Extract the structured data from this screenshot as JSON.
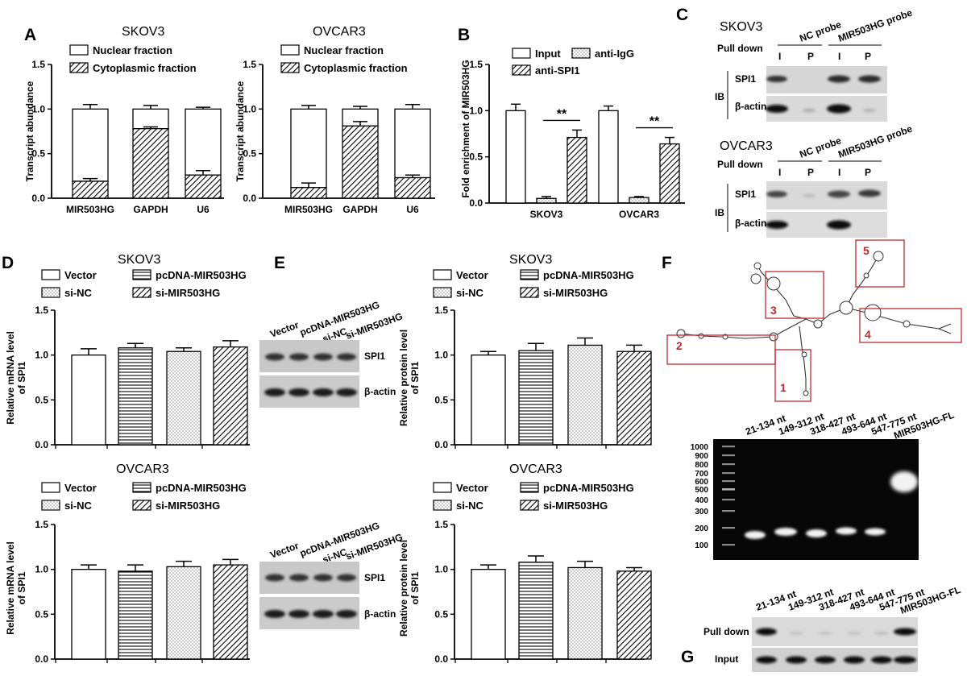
{
  "panels": {
    "A": {
      "letter": "A",
      "legend": [
        "Nuclear fraction",
        "Cytoplasmic fraction"
      ],
      "ylabel": "Transcript abundance",
      "yticks": [
        "0.0",
        "0.5",
        "1.0",
        "1.5"
      ],
      "charts": [
        {
          "title": "SKOV3"
        },
        {
          "title": "OVCAR3"
        }
      ]
    },
    "B": {
      "letter": "B",
      "legend": [
        "Input",
        "anti-IgG",
        "anti-SPI1"
      ],
      "ylabel": "Fold enrichment of MIR503HG",
      "yticks": [
        "0.0",
        "0.5",
        "1.0",
        "1.5"
      ],
      "sig": "**"
    },
    "C": {
      "letter": "C",
      "blots": [
        {
          "title": "SKOV3",
          "pull_down": "Pull down",
          "nc_probe": "NC probe",
          "mir_probe": "MIR503HG probe",
          "lanes": [
            "I",
            "P",
            "I",
            "P"
          ],
          "ib": "IB",
          "rows": [
            "SPI1",
            "β-actin"
          ]
        },
        {
          "title": "OVCAR3",
          "pull_down": "Pull down",
          "nc_probe": "NC probe",
          "mir_probe": "MIR503HG probe",
          "lanes": [
            "I",
            "P",
            "I",
            "P"
          ],
          "ib": "IB",
          "rows": [
            "SPI1",
            "β-actin"
          ]
        }
      ]
    },
    "D": {
      "letter": "D",
      "legend": [
        "Vector",
        "pcDNA-MIR503HG",
        "si-NC",
        "si-MIR503HG"
      ],
      "ylabel_line1": "Relative mRNA level",
      "ylabel_line2": "of SPI1",
      "yticks": [
        "0.0",
        "0.5",
        "1.0",
        "1.5"
      ],
      "charts": [
        {
          "title": "SKOV3"
        },
        {
          "title": "OVCAR3"
        }
      ]
    },
    "E": {
      "letter": "E",
      "legend": [
        "Vector",
        "pcDNA-MIR503HG",
        "si-NC",
        "si-MIR503HG"
      ],
      "ylabel_line1": "Relative protein level",
      "ylabel_line2": "of SPI1",
      "yticks": [
        "0.0",
        "0.5",
        "1.0",
        "1.5"
      ],
      "charts": [
        {
          "title": "SKOV3"
        },
        {
          "title": "OVCAR3"
        }
      ],
      "blot_lanes": [
        "Vector",
        "pcDNA-MIR503HG",
        "si-NC",
        "si-MIR503HG"
      ],
      "blot_rows": [
        "SPI1",
        "β-actin"
      ]
    },
    "F": {
      "letter": "F",
      "regions": [
        "1",
        "2",
        "3",
        "4",
        "5"
      ],
      "lanes": [
        "21-134 nt",
        "149-312 nt",
        "318-427 nt",
        "493-644 nt",
        "547-775 nt",
        "MIR503HG-FL"
      ],
      "ladder": [
        "1000",
        "900",
        "800",
        "700",
        "600",
        "500",
        "400",
        "300",
        "200",
        "100"
      ]
    },
    "G": {
      "letter": "G",
      "lanes": [
        "21-134 nt",
        "149-312 nt",
        "318-427 nt",
        "493-644 nt",
        "547-775 nt",
        "MIR503HG-FL"
      ],
      "rows": [
        "Pull down",
        "Input"
      ]
    }
  },
  "chart_data": [
    {
      "type": "bar",
      "stacked": true,
      "title": "SKOV3",
      "categories": [
        "MIR503HG",
        "GAPDH",
        "U6"
      ],
      "series": [
        {
          "name": "Nuclear fraction",
          "values": [
            0.81,
            0.22,
            0.74
          ],
          "error": [
            0.05,
            0.04,
            0.02
          ]
        },
        {
          "name": "Cytoplasmic fraction",
          "values": [
            0.19,
            0.78,
            0.26
          ],
          "error": [
            0.03,
            0.02,
            0.05
          ]
        }
      ],
      "ylabel": "Transcript abundance",
      "ylim": [
        0,
        1.5
      ]
    },
    {
      "type": "bar",
      "stacked": true,
      "title": "OVCAR3",
      "categories": [
        "MIR503HG",
        "GAPDH",
        "U6"
      ],
      "series": [
        {
          "name": "Nuclear fraction",
          "values": [
            0.88,
            0.19,
            0.77
          ],
          "error": [
            0.04,
            0.03,
            0.05
          ]
        },
        {
          "name": "Cytoplasmic fraction",
          "values": [
            0.12,
            0.81,
            0.23
          ],
          "error": [
            0.05,
            0.05,
            0.03
          ]
        }
      ],
      "ylabel": "Transcript abundance",
      "ylim": [
        0,
        1.5
      ]
    },
    {
      "type": "bar",
      "title": "",
      "categories": [
        "SKOV3",
        "OVCAR3"
      ],
      "series": [
        {
          "name": "Input",
          "values": [
            1.0,
            1.0
          ],
          "error": [
            0.07,
            0.05
          ]
        },
        {
          "name": "anti-IgG",
          "values": [
            0.05,
            0.06
          ],
          "error": [
            0.02,
            0.01
          ]
        },
        {
          "name": "anti-SPI1",
          "values": [
            0.71,
            0.64
          ],
          "error": [
            0.08,
            0.07
          ]
        }
      ],
      "annotations": [
        "**",
        "**"
      ],
      "ylabel": "Fold enrichment of MIR503HG",
      "ylim": [
        0,
        1.5
      ]
    },
    {
      "type": "bar",
      "title": "SKOV3",
      "categories": [
        "Vector",
        "pcDNA-MIR503HG",
        "si-NC",
        "si-MIR503HG"
      ],
      "values": [
        1.0,
        1.08,
        1.04,
        1.09
      ],
      "error": [
        0.07,
        0.05,
        0.04,
        0.07
      ],
      "ylabel": "Relative mRNA level of SPI1",
      "ylim": [
        0,
        1.5
      ]
    },
    {
      "type": "bar",
      "title": "OVCAR3",
      "categories": [
        "Vector",
        "pcDNA-MIR503HG",
        "si-NC",
        "si-MIR503HG"
      ],
      "values": [
        1.0,
        0.98,
        1.03,
        1.05
      ],
      "error": [
        0.05,
        0.07,
        0.06,
        0.06
      ],
      "ylabel": "Relative mRNA level of SPI1",
      "ylim": [
        0,
        1.5
      ]
    },
    {
      "type": "bar",
      "title": "SKOV3",
      "categories": [
        "Vector",
        "pcDNA-MIR503HG",
        "si-NC",
        "si-MIR503HG"
      ],
      "values": [
        1.0,
        1.05,
        1.11,
        1.04
      ],
      "error": [
        0.04,
        0.08,
        0.08,
        0.07
      ],
      "ylabel": "Relative protein level of SPI1",
      "ylim": [
        0,
        1.5
      ]
    },
    {
      "type": "bar",
      "title": "OVCAR3",
      "categories": [
        "Vector",
        "pcDNA-MIR503HG",
        "si-NC",
        "si-MIR503HG"
      ],
      "values": [
        1.0,
        1.08,
        1.02,
        0.98
      ],
      "error": [
        0.05,
        0.07,
        0.07,
        0.04
      ],
      "ylabel": "Relative protein level of SPI1",
      "ylim": [
        0,
        1.5
      ]
    }
  ]
}
